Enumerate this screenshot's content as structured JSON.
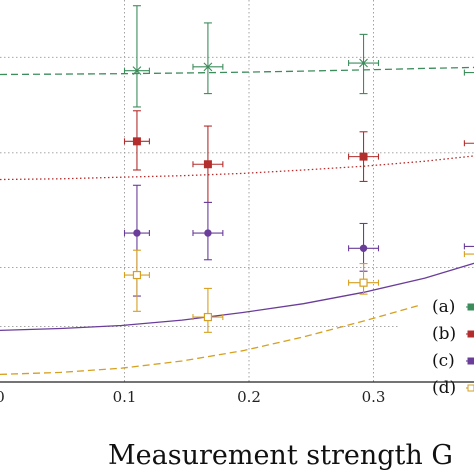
{
  "chart_data": {
    "type": "scatter",
    "xlabel": "Measurement strength   G",
    "x_ticks": [
      {
        "value": 0.0,
        "label": "0"
      },
      {
        "value": 0.1,
        "label": "0.1"
      },
      {
        "value": 0.2,
        "label": "0.2"
      },
      {
        "value": 0.3,
        "label": "0.3"
      }
    ],
    "xlim": [
      0,
      0.39
    ],
    "ylim": [
      0,
      1
    ],
    "y_gridlines": [
      0.145,
      0.3,
      0.6,
      0.85
    ],
    "grid": true,
    "legend_position": "bottom-right",
    "series": [
      {
        "legend": "(a)",
        "color": "#3d8c5c",
        "marker": "x",
        "line_style": "dashed",
        "points": [
          {
            "x": 0.11,
            "y": 0.815,
            "yerr_low": 0.72,
            "yerr_high": 0.985,
            "xerr": 0.01
          },
          {
            "x": 0.167,
            "y": 0.825,
            "yerr_low": 0.755,
            "yerr_high": 0.94,
            "xerr": 0.012
          },
          {
            "x": 0.292,
            "y": 0.835,
            "yerr_low": 0.755,
            "yerr_high": 0.91,
            "xerr": 0.012
          },
          {
            "x": 0.385,
            "y": 0.81,
            "yerr_low": 0.75,
            "yerr_high": 0.88,
            "xerr": 0.012
          }
        ],
        "fit": [
          0.805,
          0.806,
          0.807,
          0.809,
          0.811,
          0.814,
          0.817,
          0.821,
          0.824
        ]
      },
      {
        "legend": "(b)",
        "color": "#b42d2d",
        "marker": "s-filled",
        "line_style": "dotted",
        "points": [
          {
            "x": 0.11,
            "y": 0.63,
            "yerr_low": 0.555,
            "yerr_high": 0.71,
            "xerr": 0.01
          },
          {
            "x": 0.167,
            "y": 0.57,
            "yerr_low": 0.47,
            "yerr_high": 0.67,
            "xerr": 0.012
          },
          {
            "x": 0.292,
            "y": 0.59,
            "yerr_low": 0.525,
            "yerr_high": 0.655,
            "xerr": 0.012
          },
          {
            "x": 0.385,
            "y": 0.625,
            "yerr_low": 0.57,
            "yerr_high": 0.69,
            "xerr": 0.012
          }
        ],
        "fit": [
          0.53,
          0.532,
          0.536,
          0.54,
          0.546,
          0.555,
          0.565,
          0.578,
          0.595
        ]
      },
      {
        "legend": "(c)",
        "color": "#6a3d9a",
        "marker": "o-filled",
        "line_style": "solid",
        "points": [
          {
            "x": 0.11,
            "y": 0.39,
            "yerr_low": 0.225,
            "yerr_high": 0.515,
            "xerr": 0.01
          },
          {
            "x": 0.167,
            "y": 0.39,
            "yerr_low": 0.32,
            "yerr_high": 0.47,
            "xerr": 0.012
          },
          {
            "x": 0.292,
            "y": 0.35,
            "yerr_low": 0.29,
            "yerr_high": 0.415,
            "xerr": 0.012
          },
          {
            "x": 0.385,
            "y": 0.355,
            "yerr_low": 0.33,
            "yerr_high": 0.38,
            "xerr": 0.012
          }
        ],
        "fit": [
          0.135,
          0.14,
          0.148,
          0.162,
          0.182,
          0.205,
          0.235,
          0.272,
          0.32
        ]
      },
      {
        "legend": "(d)",
        "color": "#d6a020",
        "marker": "s-open",
        "line_style": "dashed",
        "points": [
          {
            "x": 0.11,
            "y": 0.28,
            "yerr_low": 0.185,
            "yerr_high": 0.345,
            "xerr": 0.01
          },
          {
            "x": 0.167,
            "y": 0.17,
            "yerr_low": 0.13,
            "yerr_high": 0.245,
            "xerr": 0.012
          },
          {
            "x": 0.292,
            "y": 0.26,
            "yerr_low": 0.23,
            "yerr_high": 0.31,
            "xerr": 0.012
          },
          {
            "x": 0.385,
            "y": 0.335,
            "yerr_low": 0.305,
            "yerr_high": 0.36,
            "xerr": 0.012
          }
        ],
        "fit": [
          0.02,
          0.025,
          0.036,
          0.055,
          0.082,
          0.118,
          0.16,
          0.205,
          0.255
        ]
      }
    ]
  }
}
